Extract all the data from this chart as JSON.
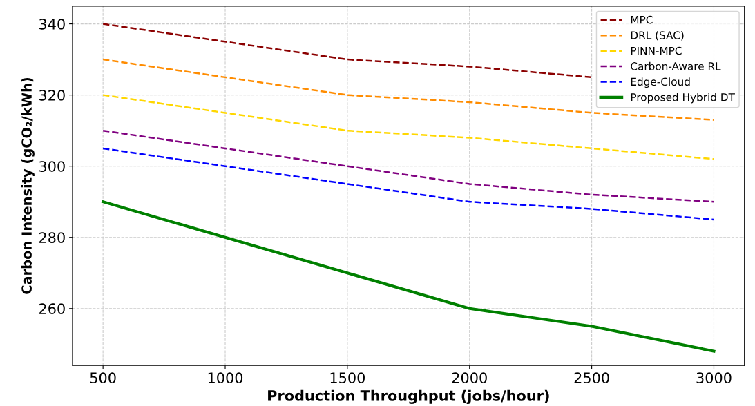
{
  "chart_data": {
    "type": "line",
    "xlabel": "Production Throughput (jobs/hour)",
    "ylabel": "Carbon Intensity (gCO₂/kWh)",
    "x": [
      500,
      1000,
      1500,
      2000,
      2500,
      3000
    ],
    "series": [
      {
        "name": "MPC",
        "color": "#8b0000",
        "line_style": "dashed",
        "values": [
          340,
          335,
          330,
          328,
          325,
          null
        ]
      },
      {
        "name": "DRL (SAC)",
        "color": "#ff8c00",
        "line_style": "dashed",
        "values": [
          330,
          325,
          320,
          318,
          315,
          313
        ]
      },
      {
        "name": "PINN-MPC",
        "color": "#ffd700",
        "line_style": "dashed",
        "values": [
          320,
          315,
          310,
          308,
          305,
          302
        ]
      },
      {
        "name": "Carbon-Aware RL",
        "color": "#800080",
        "line_style": "dashed",
        "values": [
          310,
          305,
          300,
          295,
          292,
          290
        ]
      },
      {
        "name": "Edge-Cloud",
        "color": "#0000ff",
        "line_style": "dashed",
        "values": [
          305,
          300,
          295,
          290,
          288,
          285
        ]
      },
      {
        "name": "Proposed Hybrid DT",
        "color": "#008000",
        "line_style": "solid",
        "values": [
          290,
          280,
          270,
          260,
          255,
          248
        ]
      }
    ],
    "xlim": [
      375,
      3125
    ],
    "xticks": [
      500,
      1000,
      1500,
      2000,
      2500,
      3000
    ],
    "ylim": [
      244,
      345
    ],
    "yticks": [
      260,
      280,
      300,
      320,
      340
    ],
    "grid": true,
    "legend": "top right",
    "marker": "none"
  }
}
